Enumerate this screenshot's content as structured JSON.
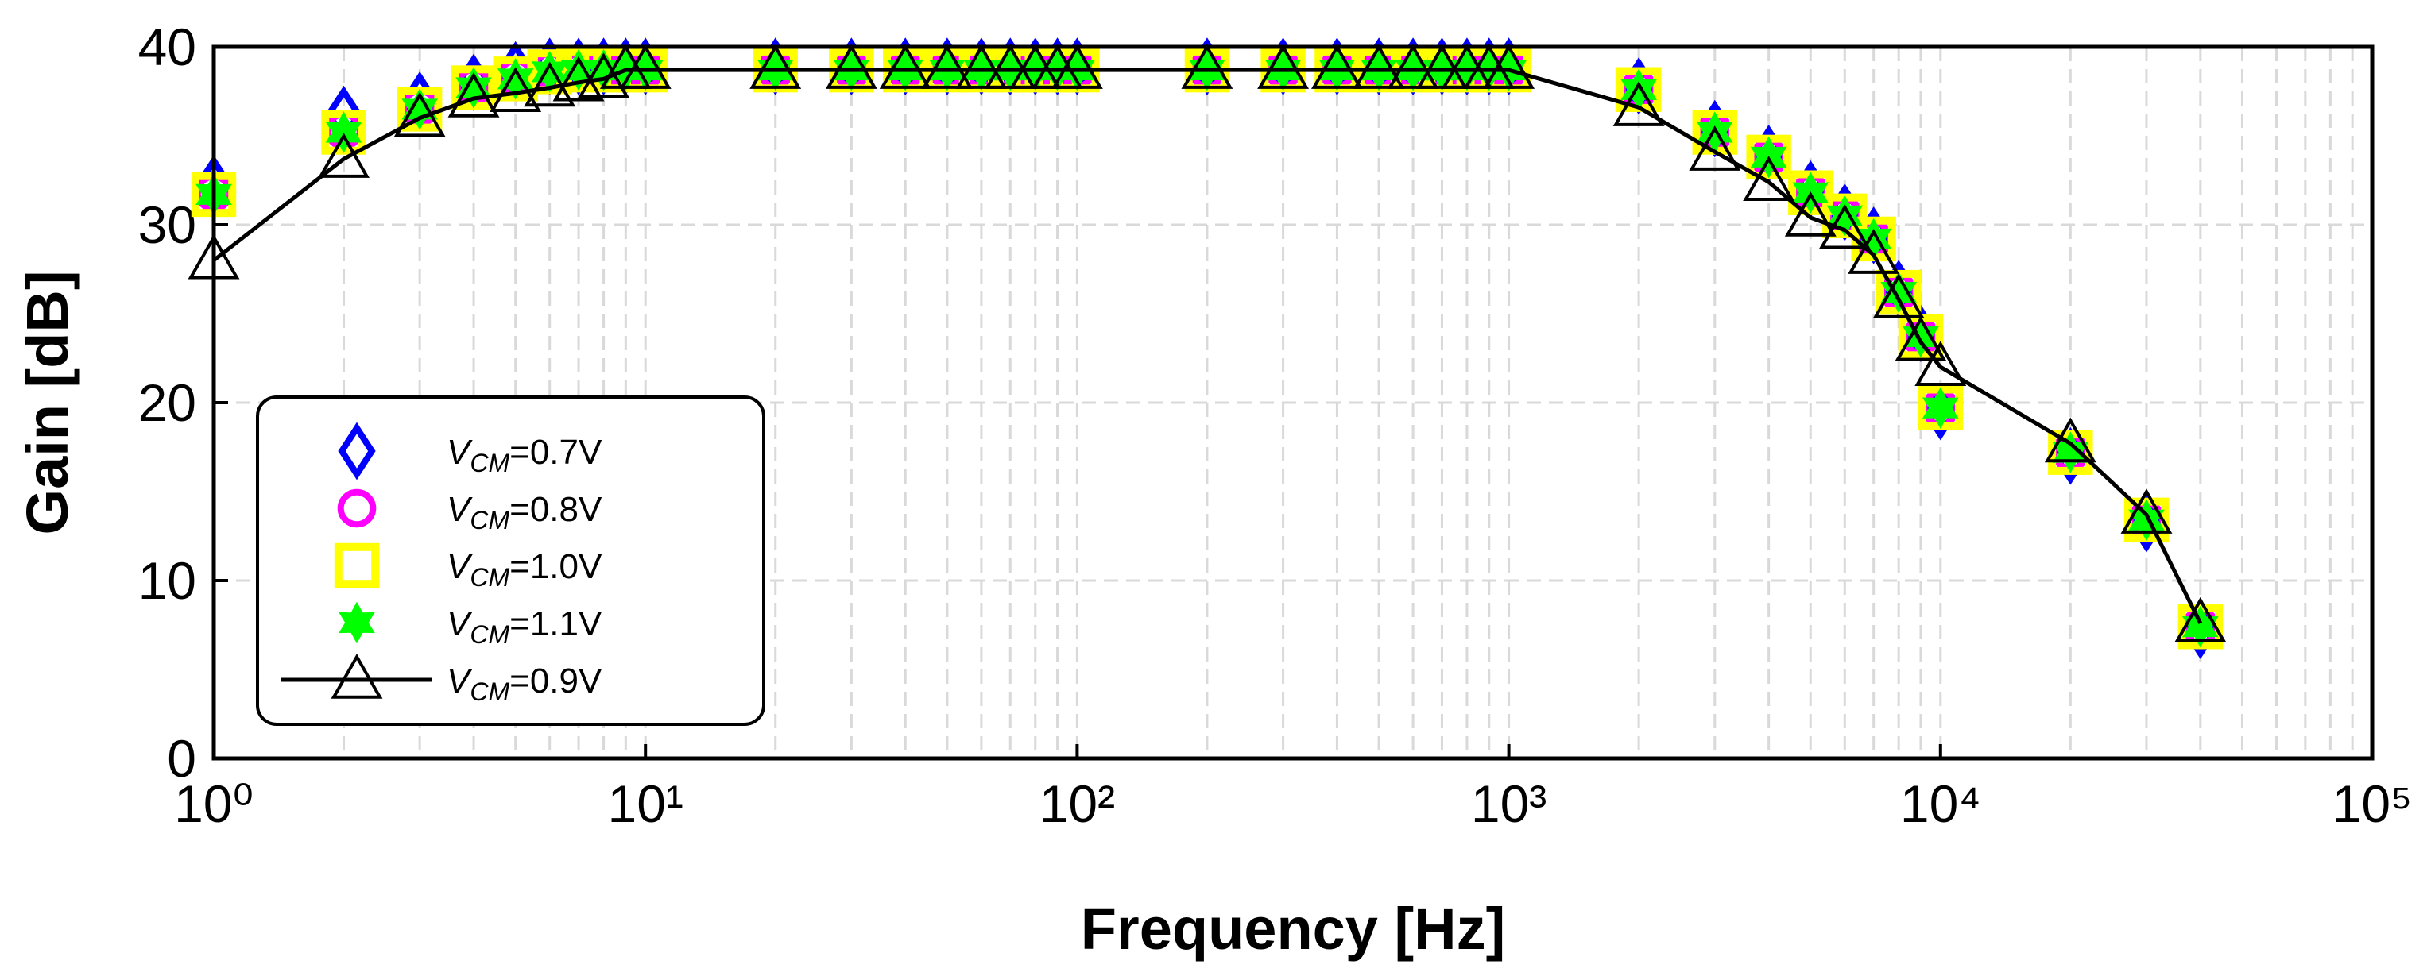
{
  "chart_data": {
    "type": "line",
    "xlabel": "Frequency [Hz]",
    "ylabel": "Gain [dB]",
    "log_x": true,
    "grid": true,
    "minor_grid": true,
    "legend": "lower left",
    "xlim": [
      1,
      100000
    ],
    "xticks": [
      {
        "value": 1,
        "label": "10⁰"
      },
      {
        "value": 10,
        "label": "10¹"
      },
      {
        "value": 100,
        "label": "10²"
      },
      {
        "value": 1000,
        "label": "10³"
      },
      {
        "value": 10000,
        "label": "10⁴"
      },
      {
        "value": 100000,
        "label": "10⁵"
      }
    ],
    "ylim": [
      0,
      40
    ],
    "yticks": [
      0,
      10,
      20,
      30,
      40
    ],
    "x": [
      1,
      2,
      3,
      4,
      5,
      6,
      7,
      8,
      9,
      10,
      20,
      30,
      40,
      50,
      60,
      70,
      80,
      90,
      100,
      200,
      300,
      400,
      500,
      600,
      700,
      800,
      900,
      1000,
      2000,
      3000,
      4000,
      5000,
      6000,
      7000,
      8000,
      9000,
      10000,
      20000,
      30000,
      40000
    ],
    "series": [
      {
        "name": "VCM=0.7V",
        "color": "#0000ff",
        "marker": "diamond",
        "line": false,
        "values": [
          32.3,
          36.2,
          37.0,
          38.0,
          38.7,
          38.9,
          38.9,
          38.9,
          38.9,
          38.9,
          38.9,
          38.9,
          38.9,
          38.9,
          38.9,
          38.9,
          38.9,
          38.9,
          38.9,
          38.9,
          38.9,
          38.9,
          38.9,
          38.9,
          38.9,
          38.9,
          38.9,
          38.9,
          37.8,
          35.4,
          34.0,
          32.0,
          30.7,
          29.4,
          26.4,
          23.9,
          19.5,
          17.0,
          13.2,
          7.2
        ]
      },
      {
        "name": "VCM=0.8V",
        "color": "#ff00ff",
        "marker": "circle",
        "line": false,
        "values": [
          31.8,
          35.3,
          36.6,
          37.8,
          38.3,
          38.7,
          38.7,
          38.7,
          38.7,
          38.7,
          38.7,
          38.7,
          38.7,
          38.7,
          38.7,
          38.7,
          38.7,
          38.7,
          38.7,
          38.7,
          38.7,
          38.7,
          38.7,
          38.7,
          38.7,
          38.7,
          38.7,
          38.7,
          37.6,
          35.2,
          33.8,
          31.8,
          30.5,
          29.2,
          26.2,
          23.7,
          19.7,
          17.2,
          13.4,
          7.4
        ]
      },
      {
        "name": "VCM=1.0V",
        "color": "#ffff00",
        "marker": "square",
        "line": false,
        "values": [
          31.7,
          35.2,
          36.5,
          37.7,
          38.2,
          38.6,
          38.7,
          38.7,
          38.7,
          38.7,
          38.7,
          38.7,
          38.7,
          38.7,
          38.7,
          38.7,
          38.7,
          38.7,
          38.7,
          38.7,
          38.7,
          38.7,
          38.7,
          38.7,
          38.7,
          38.7,
          38.7,
          38.7,
          37.6,
          35.2,
          33.8,
          31.8,
          30.5,
          29.2,
          26.2,
          23.7,
          19.7,
          17.2,
          13.4,
          7.4
        ]
      },
      {
        "name": "VCM=1.1V",
        "color": "#00ff00",
        "marker": "star",
        "line": false,
        "values": [
          31.7,
          35.2,
          36.5,
          37.7,
          38.2,
          38.6,
          38.7,
          38.7,
          38.7,
          38.7,
          38.7,
          38.7,
          38.7,
          38.7,
          38.7,
          38.7,
          38.7,
          38.7,
          38.7,
          38.7,
          38.7,
          38.7,
          38.7,
          38.7,
          38.7,
          38.7,
          38.7,
          38.7,
          37.6,
          35.2,
          33.8,
          31.8,
          30.5,
          29.2,
          26.2,
          23.7,
          19.7,
          17.2,
          13.4,
          7.4
        ]
      },
      {
        "name": "VCM=0.9V",
        "color": "#000000",
        "marker": "triangle",
        "line": true,
        "values": [
          28.0,
          33.7,
          36.0,
          37.1,
          37.4,
          37.7,
          38.0,
          38.2,
          38.7,
          38.7,
          38.7,
          38.7,
          38.7,
          38.7,
          38.7,
          38.7,
          38.7,
          38.7,
          38.7,
          38.7,
          38.7,
          38.7,
          38.7,
          38.7,
          38.7,
          38.7,
          38.7,
          38.7,
          36.6,
          34.1,
          32.4,
          30.4,
          29.7,
          28.3,
          25.8,
          23.4,
          22.0,
          17.7,
          13.7,
          7.6
        ]
      }
    ]
  }
}
